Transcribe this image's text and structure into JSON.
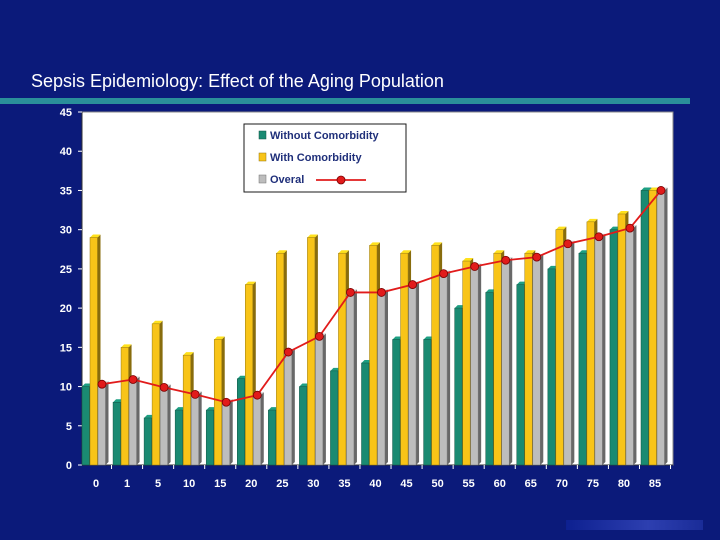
{
  "slide": {
    "title": "Sepsis Epidemiology: Effect of the Aging Population"
  },
  "colors": {
    "background": "#0b1a7a",
    "title_rule": "#2a8f9a",
    "plot_bg": "#ffffff",
    "without": "#1a8a72",
    "with": "#f8c418",
    "overall_bar": "#bdbdbd",
    "overall_line": "#e11b1b"
  },
  "chart_data": {
    "type": "bar",
    "categories": [
      "0",
      "1",
      "5",
      "10",
      "15",
      "20",
      "25",
      "30",
      "35",
      "40",
      "45",
      "50",
      "55",
      "60",
      "65",
      "70",
      "75",
      "80",
      "85"
    ],
    "ylim": [
      0,
      45
    ],
    "yticks": [
      "0",
      "5",
      "10",
      "15",
      "20",
      "25",
      "30",
      "35",
      "40",
      "45"
    ],
    "series": [
      {
        "name": "Without Comorbidity",
        "values": [
          10,
          8,
          6,
          7,
          7,
          11,
          7,
          10,
          12,
          13,
          16,
          16,
          20,
          22,
          23,
          25,
          27,
          30,
          35
        ]
      },
      {
        "name": "With Comorbidity",
        "values": [
          29,
          15,
          18,
          14,
          16,
          23,
          27,
          29,
          27,
          28,
          27,
          28,
          26,
          27,
          27,
          30,
          31,
          32,
          35
        ]
      },
      {
        "name": "Overal",
        "values": [
          10.3,
          10.9,
          9.9,
          9.0,
          8.0,
          8.9,
          14.4,
          16.4,
          22.0,
          22.0,
          23.0,
          24.4,
          25.3,
          26.1,
          26.5,
          28.2,
          29.1,
          30.2,
          35.0
        ]
      }
    ],
    "line_series": "Overal",
    "title": "",
    "xlabel": "",
    "ylabel": "",
    "grid": false,
    "legend_position": "top-center"
  }
}
